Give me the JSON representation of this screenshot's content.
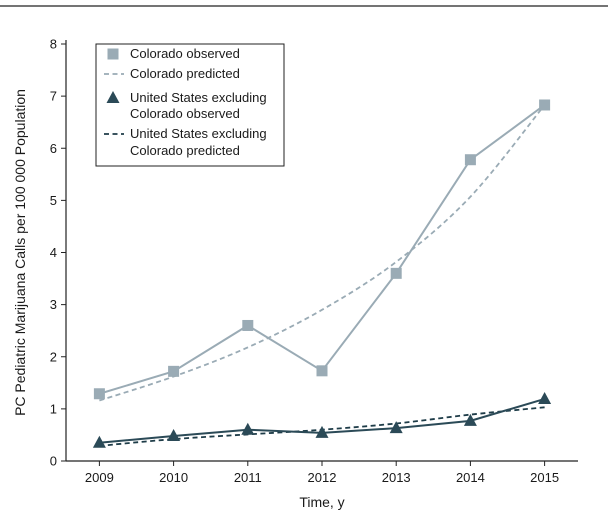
{
  "chart_data": {
    "type": "line",
    "xlabel": "Time, y",
    "ylabel": "PC Pediatric Marijuana Calls per 100 000 Population",
    "x": [
      2009,
      2010,
      2011,
      2012,
      2013,
      2014,
      2015
    ],
    "ylim": [
      0,
      8
    ],
    "yticks": [
      0,
      1,
      2,
      3,
      4,
      5,
      6,
      7,
      8
    ],
    "grid": false,
    "legend_position": "top-left",
    "series": [
      {
        "name": "Colorado observed",
        "style": "solid",
        "marker": "square",
        "color": "#9aabb5",
        "values": [
          1.29,
          1.72,
          2.6,
          1.73,
          3.6,
          5.78,
          6.83
        ]
      },
      {
        "name": "Colorado predicted",
        "style": "dashed",
        "marker": "none",
        "color": "#9aabb5",
        "values": [
          1.16,
          1.62,
          2.18,
          2.9,
          3.82,
          5.07,
          6.83
        ]
      },
      {
        "name_lines": [
          "United States excluding",
          "Colorado observed"
        ],
        "style": "solid",
        "marker": "triangle",
        "color": "#2b4a57",
        "values": [
          0.35,
          0.48,
          0.6,
          0.54,
          0.63,
          0.77,
          1.19
        ]
      },
      {
        "name_lines": [
          "United States excluding",
          "Colorado predicted"
        ],
        "style": "dashed",
        "marker": "none",
        "color": "#1e3c48",
        "values": [
          0.29,
          0.42,
          0.51,
          0.6,
          0.72,
          0.89,
          1.03
        ]
      }
    ]
  }
}
